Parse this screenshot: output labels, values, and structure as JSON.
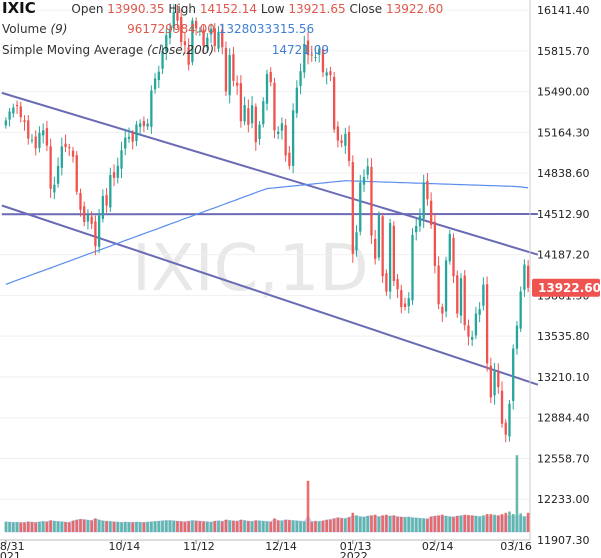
{
  "header": {
    "symbol": "IXIC",
    "open_label": "Open",
    "open_value": "13990.35",
    "high_label": "High",
    "high_value": "14152.14",
    "low_label": "Low",
    "low_value": "13921.65",
    "close_label": "Close",
    "close_value": "13922.60",
    "volume_label": "Volume",
    "volume_param": "(9)",
    "volume_value": "961729984.00",
    "volume_ma_value": "1328033315.56",
    "sma_label": "Simple Moving Average",
    "sma_param": "(close,200)",
    "sma_value": "14721.09"
  },
  "watermark": "IXIC,1D",
  "colors": {
    "up": "#26a69a",
    "down": "#ef5350",
    "sma": "#5b8def",
    "trend": "#6b6bb5",
    "up_vol": "#4caf9e",
    "price_tag": "#ef5350",
    "vol_area": "#a8c4ee"
  },
  "chart_data": {
    "type": "candlestick",
    "ylim": [
      11907.3,
      16222
    ],
    "y_ticks": [
      "16141.40",
      "15815.70",
      "15490.00",
      "15164.30",
      "14838.60",
      "14512.90",
      "14187.20",
      "13861.50",
      "13535.80",
      "13210.10",
      "12884.40",
      "12558.70",
      "12233.00",
      "11907.30"
    ],
    "last_price": "13922.60",
    "x_ticks": [
      {
        "label": "08/31",
        "sub": "2021",
        "i": 0
      },
      {
        "label": "10/14",
        "sub": "",
        "i": 31
      },
      {
        "label": "11/12",
        "sub": "",
        "i": 51
      },
      {
        "label": "12/14",
        "sub": "",
        "i": 73
      },
      {
        "label": "01/13",
        "sub": "2022",
        "i": 93
      },
      {
        "label": "02/14",
        "sub": "",
        "i": 115
      },
      {
        "label": "03/16",
        "sub": "",
        "i": 136
      }
    ],
    "closes": [
      15259,
      15331,
      15363,
      15374,
      15286,
      15248,
      15115,
      15105,
      15037,
      15161,
      15181,
      15059,
      14713,
      14746,
      14896,
      15052,
      15047,
      15043,
      14970,
      14690,
      14546,
      14448,
      14510,
      14434,
      14255,
      14501,
      14655,
      14579,
      14823,
      14801,
      14897,
      15021,
      15122,
      15129,
      15090,
      15226,
      15236,
      15215,
      15235,
      15498,
      15595,
      15649,
      15812,
      15940,
      15982,
      16129,
      16057,
      15886,
      15861,
      15705,
      16057,
      15994,
      15974,
      15854,
      15921,
      15993,
      15854,
      15968,
      15845,
      15491,
      15782,
      15576,
      15537,
      15254,
      15382,
      15225,
      15381,
      15085,
      15226,
      15413,
      15630,
      15566,
      15180,
      15170,
      15237,
      14980,
      14897,
      15341,
      15522,
      15653,
      15871,
      15782,
      15781,
      15766,
      15833,
      15645,
      15644,
      15622,
      15188,
      15100,
      15080,
      15153,
      14936,
      14194,
      14366,
      14764,
      14807,
      14893,
      14340,
      14154,
      14507,
      14015,
      13892,
      14440,
      13977,
      13911,
      13768,
      13769,
      13839,
      14346,
      14417,
      14499,
      14765,
      14630,
      14425,
      14098,
      13791,
      13717,
      14141,
      14352,
      14015,
      13717,
      13999,
      13624,
      13532,
      13530,
      13717,
      13752,
      13948,
      13319,
      13046,
      13254,
      13129,
      12837,
      12749,
      12997,
      13437,
      13620,
      13893,
      14108,
      13923
    ],
    "volumes": [
      320,
      310,
      300,
      305,
      295,
      300,
      320,
      310,
      300,
      315,
      330,
      320,
      360,
      340,
      330,
      320,
      310,
      300,
      350,
      380,
      400,
      390,
      370,
      360,
      420,
      380,
      350,
      340,
      330,
      320,
      310,
      300,
      310,
      305,
      300,
      310,
      305,
      300,
      310,
      320,
      330,
      340,
      350,
      360,
      360,
      350,
      340,
      330,
      320,
      340,
      360,
      350,
      340,
      330,
      320,
      310,
      340,
      350,
      330,
      380,
      360,
      350,
      340,
      380,
      360,
      340,
      330,
      360,
      350,
      340,
      330,
      320,
      420,
      360,
      350,
      380,
      370,
      360,
      350,
      340,
      330,
      1600,
      320,
      340,
      330,
      350,
      380,
      390,
      420,
      450,
      430,
      420,
      460,
      600,
      520,
      480,
      470,
      500,
      520,
      540,
      480,
      520,
      540,
      500,
      520,
      480,
      470,
      460,
      470,
      450,
      440,
      430,
      420,
      410,
      480,
      500,
      520,
      540,
      500,
      480,
      470,
      500,
      520,
      540,
      530,
      520,
      500,
      480,
      520,
      560,
      560,
      540,
      520,
      560,
      600,
      640,
      560,
      2400,
      580,
      480,
      600
    ],
    "sma200": [
      13950,
      13961,
      13972,
      13983,
      13994,
      14005,
      14016,
      14027,
      14038,
      14049,
      14059,
      14070,
      14081,
      14092,
      14103,
      14114,
      14125,
      14136,
      14147,
      14158,
      14169,
      14180,
      14191,
      14202,
      14213,
      14223,
      14234,
      14245,
      14256,
      14267,
      14278,
      14289,
      14300,
      14311,
      14322,
      14333,
      14344,
      14355,
      14366,
      14377,
      14387,
      14398,
      14409,
      14420,
      14431,
      14442,
      14453,
      14464,
      14475,
      14486,
      14497,
      14508,
      14519,
      14530,
      14541,
      14551,
      14562,
      14573,
      14584,
      14595,
      14606,
      14617,
      14628,
      14639,
      14650,
      14661,
      14672,
      14683,
      14694,
      14705,
      14715,
      14718,
      14721,
      14724,
      14727,
      14730,
      14733,
      14736,
      14739,
      14742,
      14745,
      14748,
      14751,
      14754,
      14757,
      14760,
      14763,
      14766,
      14769,
      14772,
      14775,
      14778,
      14777,
      14776,
      14775,
      14774,
      14773,
      14772,
      14771,
      14770,
      14769,
      14768,
      14767,
      14766,
      14765,
      14764,
      14763,
      14762,
      14761,
      14760,
      14759,
      14758,
      14757,
      14756,
      14755,
      14754,
      14753,
      14752,
      14751,
      14750,
      14749,
      14748,
      14747,
      14746,
      14745,
      14744,
      14743,
      14742,
      14741,
      14740,
      14739,
      14738,
      14737,
      14736,
      14735,
      14734,
      14733,
      14731,
      14729,
      14725,
      14721
    ],
    "trendlines": [
      {
        "i1": 0,
        "v1": 15480,
        "i2": 141,
        "v2": 14187
      },
      {
        "i1": 0,
        "v1": 14580,
        "i2": 141,
        "v2": 13148
      },
      {
        "i1": 0,
        "v1": 14510,
        "i2": 141,
        "v2": 14512
      }
    ]
  }
}
